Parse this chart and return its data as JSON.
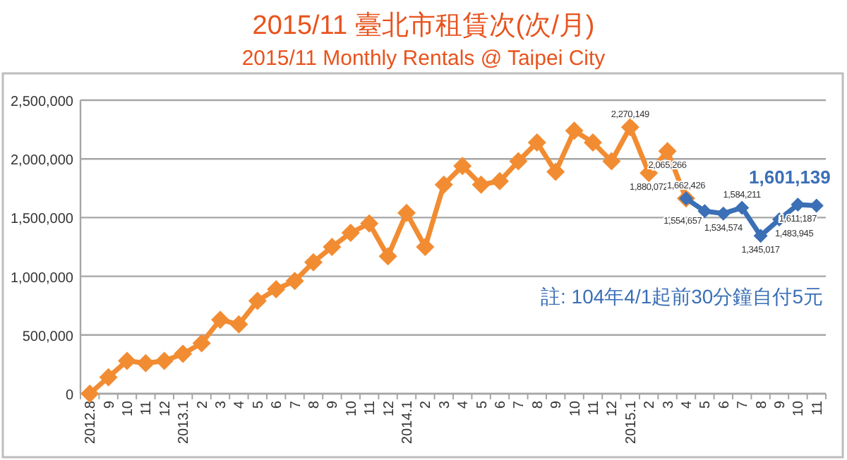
{
  "chart_data": {
    "type": "line",
    "title": "2015/11 臺北市租賃次(次/月)",
    "subtitle": "2015/11 Monthly Rentals @ Taipei City",
    "categories": [
      "2012.8",
      "9",
      "10",
      "11",
      "12",
      "2013.1",
      "2",
      "3",
      "4",
      "5",
      "6",
      "7",
      "8",
      "9",
      "10",
      "11",
      "12",
      "2014.1",
      "2",
      "3",
      "4",
      "5",
      "6",
      "7",
      "8",
      "9",
      "10",
      "11",
      "12",
      "2015.1",
      "2",
      "3",
      "4",
      "5",
      "6",
      "7",
      "8",
      "9",
      "10",
      "11"
    ],
    "series": [
      {
        "color": "#f28c32",
        "values": [
          0,
          140000,
          280000,
          260000,
          280000,
          340000,
          430000,
          630000,
          590000,
          790000,
          890000,
          960000,
          1120000,
          1250000,
          1370000,
          1450000,
          1170000,
          1540000,
          1250000,
          1780000,
          1940000,
          1780000,
          1810000,
          1980000,
          2140000,
          1890000,
          2240000,
          2140000,
          1980000,
          2270149,
          1880072,
          2065266,
          1662426,
          null,
          null,
          null,
          null,
          null,
          null,
          null
        ],
        "value_labels": [
          null,
          null,
          null,
          null,
          null,
          null,
          null,
          null,
          null,
          null,
          null,
          null,
          null,
          null,
          null,
          null,
          null,
          null,
          null,
          null,
          null,
          null,
          null,
          null,
          null,
          null,
          null,
          null,
          null,
          "2,270,149",
          "1,880,072",
          "2,065,266",
          null,
          null,
          null,
          null,
          null,
          null,
          null,
          null
        ]
      },
      {
        "color": "#3b6fb6",
        "values": [
          null,
          null,
          null,
          null,
          null,
          null,
          null,
          null,
          null,
          null,
          null,
          null,
          null,
          null,
          null,
          null,
          null,
          null,
          null,
          null,
          null,
          null,
          null,
          null,
          null,
          null,
          null,
          null,
          null,
          null,
          null,
          null,
          1662426,
          1554657,
          1534574,
          1584211,
          1345017,
          1483945,
          1611187,
          1601139
        ],
        "value_labels": [
          null,
          null,
          null,
          null,
          null,
          null,
          null,
          null,
          null,
          null,
          null,
          null,
          null,
          null,
          null,
          null,
          null,
          null,
          null,
          null,
          null,
          null,
          null,
          null,
          null,
          null,
          null,
          null,
          null,
          null,
          null,
          null,
          "1,662,426",
          "1,554,657",
          "1,534,574",
          "1,584,211",
          "1,345,017",
          "1,483,945",
          "1,611,187",
          "1,601,139"
        ]
      }
    ],
    "ylim": [
      0,
      2500000
    ],
    "yticks": [
      {
        "value": 0,
        "label": "0"
      },
      {
        "value": 500000,
        "label": "500,000"
      },
      {
        "value": 1000000,
        "label": "1,000,000"
      },
      {
        "value": 1500000,
        "label": "1,500,000"
      },
      {
        "value": 2000000,
        "label": "2,000,000"
      },
      {
        "value": 2500000,
        "label": "2,500,000"
      }
    ],
    "grid": "y",
    "marker": "diamond",
    "line_style": "solid",
    "annotations": [
      "註: 104年4/1起前30分鐘自付5元"
    ]
  }
}
